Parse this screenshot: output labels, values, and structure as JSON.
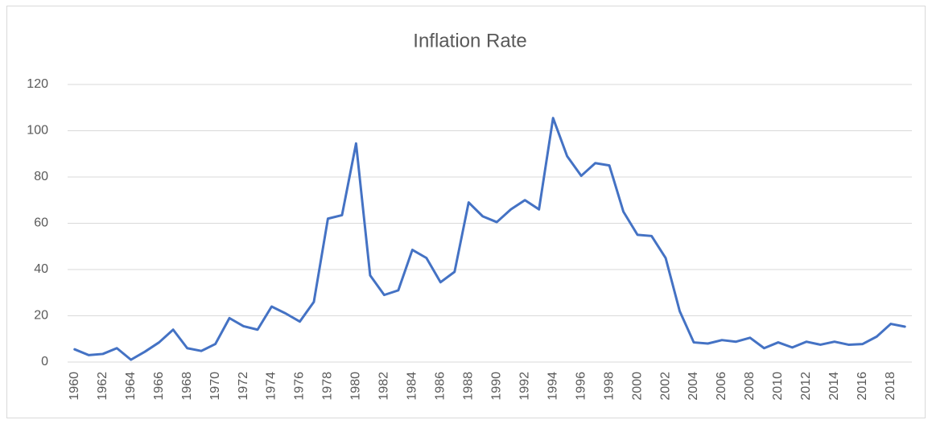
{
  "chart_data": {
    "type": "line",
    "title": "Inflation Rate",
    "categories": [
      "1960",
      null,
      "1962",
      null,
      "1964",
      null,
      "1966",
      null,
      "1968",
      null,
      "1970",
      null,
      "1972",
      null,
      "1974",
      null,
      "1976",
      null,
      "1978",
      null,
      "1980",
      null,
      "1982",
      null,
      "1984",
      null,
      "1986",
      null,
      "1988",
      null,
      "1990",
      null,
      "1992",
      null,
      "1994",
      null,
      "1996",
      null,
      "1998",
      null,
      "2000",
      null,
      "2002",
      null,
      "2004",
      null,
      "2006",
      null,
      "2008",
      null,
      "2010",
      null,
      "2012",
      null,
      "2014",
      null,
      "2016",
      null,
      "2018",
      null
    ],
    "values": [
      5.5,
      3,
      3.5,
      6,
      1,
      4.5,
      8.5,
      14,
      6,
      4.8,
      7.8,
      19,
      15.5,
      14,
      24,
      21,
      17.5,
      26,
      62,
      63.5,
      94.5,
      37.5,
      29,
      31,
      48.5,
      45,
      34.5,
      39,
      69,
      63,
      60.5,
      66,
      70,
      66,
      105.5,
      89,
      80.5,
      86,
      85,
      65,
      55,
      54.5,
      45,
      22,
      8.5,
      8,
      9.5,
      8.8,
      10.5,
      6,
      8.5,
      6.3,
      8.8,
      7.5,
      8.8,
      7.5,
      7.8,
      11,
      16.5,
      15.3
    ],
    "color": "#4472c4",
    "ylim": [
      0,
      120
    ],
    "yticks": [
      0,
      20,
      40,
      60,
      80,
      100,
      120
    ],
    "grid": true
  }
}
